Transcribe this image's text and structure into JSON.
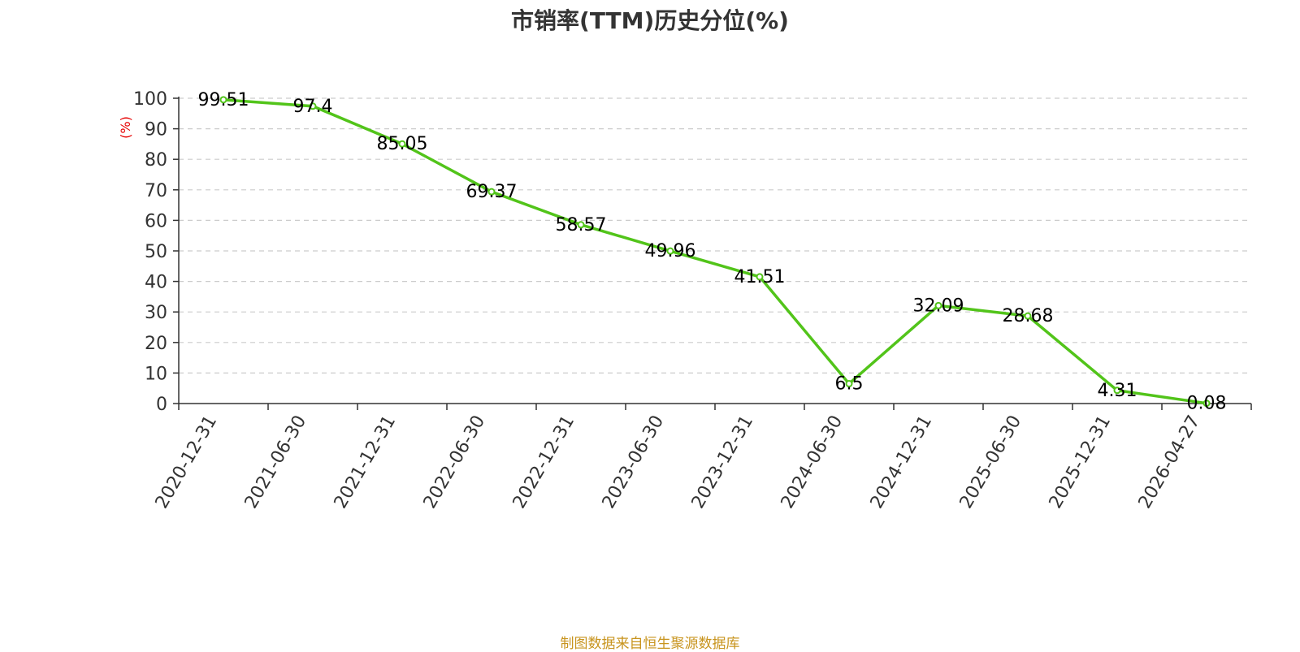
{
  "chart_data": {
    "type": "line",
    "title": "市销率(TTM)历史分位(%)",
    "ylabel": "(%)",
    "xlabel": "",
    "ylim": [
      0,
      100
    ],
    "yticks": [
      0,
      10,
      20,
      30,
      40,
      50,
      60,
      70,
      80,
      90,
      100
    ],
    "categories": [
      "2020-12-31",
      "2021-06-30",
      "2021-12-31",
      "2022-06-30",
      "2022-12-31",
      "2023-06-30",
      "2023-12-31",
      "2024-06-30",
      "2024-12-31",
      "2025-06-30",
      "2025-12-31",
      "2026-04-27"
    ],
    "series": [
      {
        "values": [
          99.51,
          97.4,
          85.05,
          69.37,
          58.57,
          49.96,
          41.51,
          6.5,
          32.09,
          28.68,
          4.31,
          0.08
        ],
        "labels": [
          "99.51",
          "97.4",
          "85.05",
          "69.37",
          "58.57",
          "49.96",
          "41.51",
          "6.5",
          "32.09",
          "28.68",
          "4.31",
          "0.08"
        ],
        "color": "#52c41a"
      }
    ],
    "grid": true,
    "legend": "none",
    "source": "制图数据来自恒生聚源数据库",
    "colors": {
      "line": "#52c41a",
      "ylabel": "#e60000",
      "source": "#c8941e",
      "grid": "#cccccc",
      "axis": "#333333"
    }
  }
}
